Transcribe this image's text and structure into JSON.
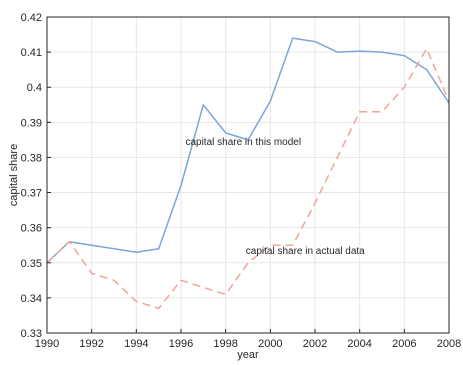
{
  "chart_data": {
    "type": "line",
    "xlabel": "year",
    "ylabel": "capital share",
    "xlim": [
      1990,
      2008
    ],
    "ylim": [
      0.33,
      0.42
    ],
    "xticks": [
      1990,
      1992,
      1994,
      1996,
      1998,
      2000,
      2002,
      2004,
      2006,
      2008
    ],
    "yticks": [
      0.33,
      0.34,
      0.35,
      0.36,
      0.37,
      0.38,
      0.39,
      0.4,
      0.41,
      0.42
    ],
    "xtick_labels": [
      "1990",
      "1992",
      "1994",
      "1996",
      "1998",
      "2000",
      "2002",
      "2004",
      "2006",
      "2008"
    ],
    "ytick_labels": [
      "0.33",
      "0.34",
      "0.35",
      "0.36",
      "0.37",
      "0.38",
      "0.39",
      "0.4",
      "0.41",
      "0.42"
    ],
    "grid": true,
    "series": [
      {
        "label": "capital share in this model",
        "color": "#7ba7d8",
        "style": "solid",
        "x": [
          1990,
          1991,
          1992,
          1993,
          1994,
          1995,
          1996,
          1997,
          1998,
          1999,
          2000,
          2001,
          2002,
          2003,
          2004,
          2005,
          2006,
          2007,
          2008
        ],
        "y": [
          0.35,
          0.356,
          0.355,
          0.354,
          0.353,
          0.354,
          0.372,
          0.395,
          0.387,
          0.385,
          0.396,
          0.414,
          0.413,
          0.41,
          0.4103,
          0.41,
          0.409,
          0.405,
          0.3955
        ]
      },
      {
        "label": "capital share in actual data",
        "color": "#f0a59b",
        "style": "dashed",
        "x": [
          1990,
          1991,
          1992,
          1993,
          1994,
          1995,
          1996,
          1997,
          1998,
          1999,
          2000,
          2001,
          2002,
          2003,
          2004,
          2005,
          2006,
          2007,
          2008
        ],
        "y": [
          0.35,
          0.356,
          0.347,
          0.345,
          0.339,
          0.337,
          0.345,
          0.343,
          0.341,
          0.35,
          0.355,
          0.355,
          0.367,
          0.38,
          0.393,
          0.393,
          0.4,
          0.411,
          0.396
        ]
      }
    ],
    "annotations": [
      {
        "text": "capital share in this model",
        "x": 1996.2,
        "y": 0.3835
      },
      {
        "text": "capital share in actual data",
        "x": 1998.9,
        "y": 0.3525
      }
    ]
  }
}
